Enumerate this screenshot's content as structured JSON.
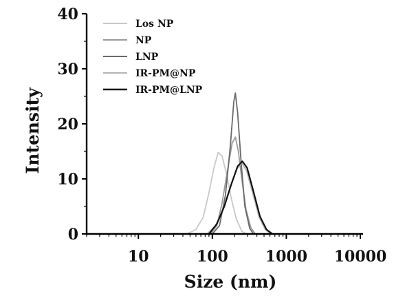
{
  "chart_data": {
    "type": "line",
    "xlabel": "Size (nm)",
    "ylabel": "Intensity",
    "x_scale": "log",
    "xlim": [
      2,
      10000
    ],
    "ylim": [
      0,
      40
    ],
    "x_ticks": [
      10,
      100,
      1000,
      10000
    ],
    "x_tick_labels": [
      "10",
      "100",
      "1000",
      "10000"
    ],
    "y_ticks": [
      0,
      10,
      20,
      30,
      40
    ],
    "y_tick_labels": [
      "0",
      "10",
      "20",
      "30",
      "40"
    ],
    "legend_position": "top-left",
    "series": [
      {
        "name": "Los NP",
        "color": "#c8c8c8",
        "points": [
          [
            45,
            0
          ],
          [
            60,
            0.8
          ],
          [
            75,
            3
          ],
          [
            90,
            7.5
          ],
          [
            105,
            12
          ],
          [
            120,
            14.8
          ],
          [
            135,
            14.2
          ],
          [
            155,
            11
          ],
          [
            180,
            6.5
          ],
          [
            210,
            2.8
          ],
          [
            250,
            0.5
          ],
          [
            290,
            0
          ]
        ]
      },
      {
        "name": "NP",
        "color": "#9a9a9a",
        "points": [
          [
            95,
            0
          ],
          [
            115,
            1.5
          ],
          [
            135,
            5.5
          ],
          [
            160,
            11.5
          ],
          [
            185,
            16.5
          ],
          [
            205,
            17.6
          ],
          [
            225,
            15
          ],
          [
            250,
            10
          ],
          [
            285,
            4.5
          ],
          [
            330,
            1.2
          ],
          [
            380,
            0
          ]
        ]
      },
      {
        "name": "LNP",
        "color": "#6a6a6a",
        "points": [
          [
            100,
            0
          ],
          [
            125,
            1.5
          ],
          [
            150,
            7
          ],
          [
            175,
            16
          ],
          [
            195,
            24
          ],
          [
            205,
            25.6
          ],
          [
            220,
            22
          ],
          [
            245,
            13
          ],
          [
            275,
            5
          ],
          [
            320,
            1
          ],
          [
            360,
            0
          ]
        ]
      },
      {
        "name": "IR-PM@NP",
        "color": "#b4b4b4",
        "points": [
          [
            85,
            0
          ],
          [
            110,
            1.5
          ],
          [
            140,
            4.5
          ],
          [
            175,
            8.5
          ],
          [
            215,
            11.8
          ],
          [
            250,
            12.9
          ],
          [
            290,
            11.5
          ],
          [
            350,
            7.5
          ],
          [
            430,
            3
          ],
          [
            520,
            0.8
          ],
          [
            620,
            0
          ]
        ]
      },
      {
        "name": "IR-PM@LNP",
        "color": "#111111",
        "points": [
          [
            90,
            0
          ],
          [
            115,
            1.8
          ],
          [
            145,
            5
          ],
          [
            180,
            9
          ],
          [
            220,
            12.3
          ],
          [
            255,
            13.2
          ],
          [
            295,
            12
          ],
          [
            355,
            8
          ],
          [
            440,
            3.2
          ],
          [
            540,
            0.8
          ],
          [
            650,
            0
          ]
        ]
      }
    ]
  }
}
